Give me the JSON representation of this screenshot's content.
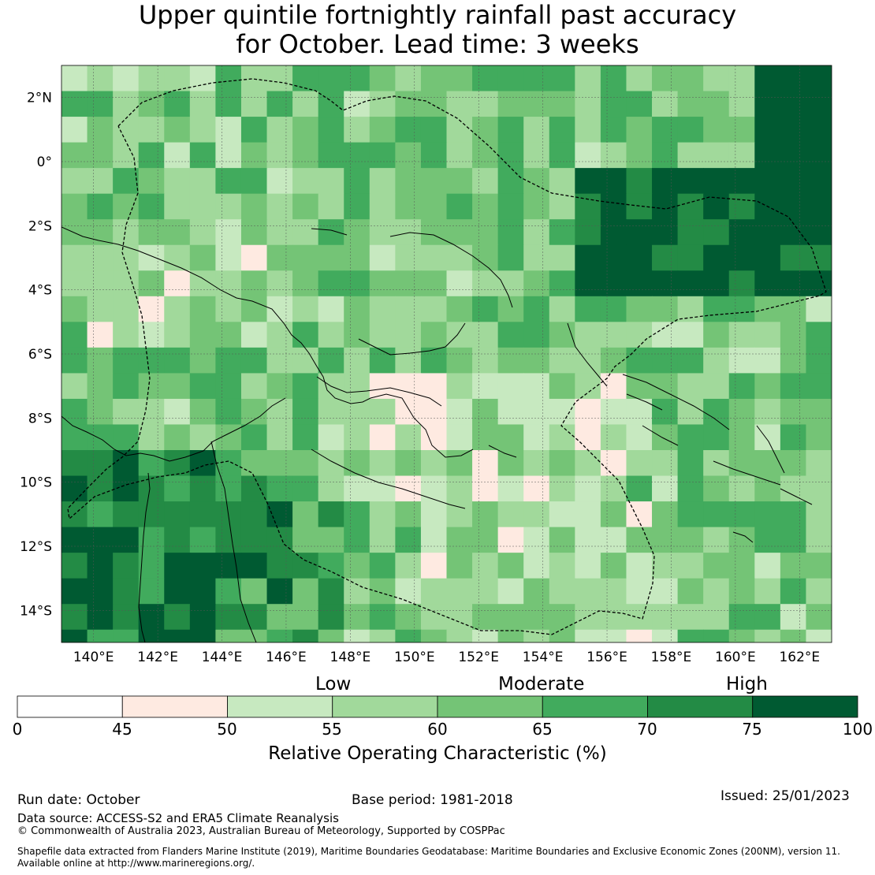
{
  "title": {
    "line1": "Upper quintile fortnightly rainfall past accuracy",
    "line2": "for October. Lead time: 3 weeks"
  },
  "map": {
    "lon_min": 139,
    "lon_max": 163,
    "lat_min": -15,
    "lat_max": 3,
    "lon_ticks": [
      140,
      142,
      144,
      146,
      148,
      150,
      152,
      154,
      156,
      158,
      160,
      162
    ],
    "lon_tick_labels": [
      "140°E",
      "142°E",
      "144°E",
      "146°E",
      "148°E",
      "150°E",
      "152°E",
      "154°E",
      "156°E",
      "158°E",
      "160°E",
      "162°E"
    ],
    "lat_ticks": [
      2,
      0,
      -2,
      -4,
      -6,
      -8,
      -10,
      -12,
      -14
    ],
    "lat_tick_labels": [
      "2°N",
      "0°",
      "2°S",
      "4°S",
      "6°S",
      "8°S",
      "10°S",
      "12°S",
      "14°S"
    ]
  },
  "colorbar": {
    "boundaries": [
      0,
      45,
      50,
      55,
      60,
      65,
      70,
      75,
      100
    ],
    "boundary_labels": [
      "0",
      "45",
      "50",
      "55",
      "60",
      "65",
      "70",
      "75",
      "100"
    ],
    "colors": [
      "#ffffff",
      "#feeae1",
      "#c7e9c0",
      "#a1d99b",
      "#74c476",
      "#41ab5d",
      "#238b45",
      "#005a32"
    ],
    "category_labels": [
      "Low",
      "Moderate",
      "High"
    ],
    "label": "Relative Operating Characteristic (%)"
  },
  "footer": {
    "run_date": "Run date: October",
    "base_period": "Base period: 1981-2018",
    "issued": "Issued: 25/01/2023",
    "data_source": "Data source: ACCESS-S2 and ERA5 Climate Reanalysis",
    "copyright": "© Commonwealth of Australia 2023, Australian Bureau of Meteorology, Supported by COSPPac",
    "shapefile_line1": "Shapefile data extracted from Flanders Marine Institute (2019), Maritime Boundaries Geodatabase: Maritime Boundaries and Exclusive Economic Zones (200NM), version 11.",
    "shapefile_line2": "Available online at http://www.marineregions.org/."
  }
}
